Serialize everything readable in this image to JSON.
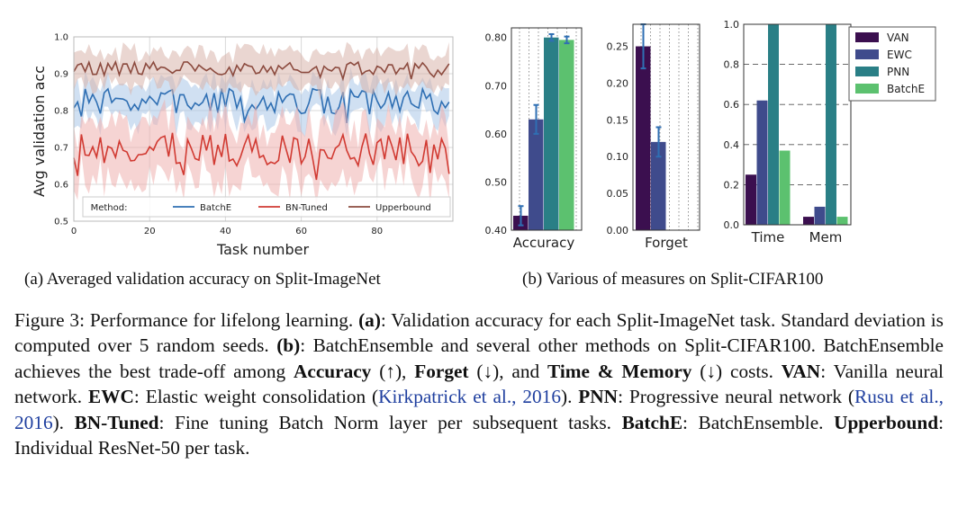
{
  "chart_data": [
    {
      "type": "line",
      "title": "Averaged validation accuracy on Split-ImageNet",
      "xlabel": "Task number",
      "ylabel": "Avg validation acc",
      "xlim": [
        0,
        100
      ],
      "ylim": [
        0.5,
        1.0
      ],
      "xticks": [
        "0",
        "20",
        "40",
        "60",
        "80"
      ],
      "yticks": [
        "0.5",
        "0.6",
        "0.7",
        "0.8",
        "0.9",
        "1.0"
      ],
      "grid": true,
      "legend_title": "Method:",
      "legend_position": "bottom",
      "series": [
        {
          "name": "BatchE",
          "color": "#2f6fb3",
          "band_color": "#a9c7e8",
          "mean": 0.825,
          "spread": 0.035,
          "band": 0.05,
          "seed": 7
        },
        {
          "name": "BN-Tuned",
          "color": "#d13a32",
          "band_color": "#efb1ae",
          "mean": 0.695,
          "spread": 0.045,
          "band": 0.075,
          "seed": 13
        },
        {
          "name": "Upperbound",
          "color": "#8c4b3f",
          "band_color": "#d9b4ab",
          "mean": 0.915,
          "spread": 0.018,
          "band": 0.045,
          "seed": 29
        }
      ]
    },
    {
      "type": "bar",
      "categories": [
        "Accuracy"
      ],
      "series": [
        {
          "name": "VAN",
          "values": [
            0.43
          ],
          "err": [
            0.02
          ]
        },
        {
          "name": "EWC",
          "values": [
            0.63
          ],
          "err": [
            0.03
          ]
        },
        {
          "name": "PNN",
          "values": [
            0.8
          ],
          "err": [
            0.007
          ]
        },
        {
          "name": "BatchE",
          "values": [
            0.795
          ],
          "err": [
            0.007
          ]
        }
      ],
      "ylim": [
        0.4,
        0.82
      ],
      "yticks": [
        "0.40",
        "0.50",
        "0.60",
        "0.70",
        "0.80"
      ]
    },
    {
      "type": "bar",
      "categories": [
        "Forget"
      ],
      "series": [
        {
          "name": "VAN",
          "values": [
            0.25
          ],
          "err": [
            0.03
          ]
        },
        {
          "name": "EWC",
          "values": [
            0.12
          ],
          "err": [
            0.02
          ]
        },
        {
          "name": "PNN",
          "values": [
            0.0
          ],
          "err": [
            0
          ]
        },
        {
          "name": "BatchE",
          "values": [
            0.0
          ],
          "err": [
            0
          ]
        }
      ],
      "ylim": [
        0.0,
        0.28
      ],
      "yticks": [
        "0.00",
        "0.05",
        "0.10",
        "0.15",
        "0.20",
        "0.25"
      ]
    },
    {
      "type": "bar",
      "categories": [
        "Time",
        "Mem"
      ],
      "series": [
        {
          "name": "VAN",
          "values": [
            0.25,
            0.04
          ]
        },
        {
          "name": "EWC",
          "values": [
            0.62,
            0.09
          ]
        },
        {
          "name": "PNN",
          "values": [
            1.0,
            1.0
          ]
        },
        {
          "name": "BatchE",
          "values": [
            0.37,
            0.04
          ]
        }
      ],
      "ylim": [
        0.0,
        1.0
      ],
      "yticks": [
        "0.0",
        "0.2",
        "0.4",
        "0.6",
        "0.8",
        "1.0"
      ],
      "legend": [
        "VAN",
        "EWC",
        "PNN",
        "BatchE"
      ],
      "legend_position": "top-right"
    }
  ],
  "colors": {
    "VAN": "#3b0f4f",
    "EWC": "#3f4b8c",
    "PNN": "#2a7f86",
    "BatchE": "#5cc16f"
  },
  "subcaptions": {
    "a": "(a) Averaged validation accuracy on Split-ImageNet",
    "b": "(b) Various of measures on Split-CIFAR100"
  },
  "caption": {
    "lead": "Figure 3: Performance for lifelong learning. ",
    "a_tag": "(a)",
    "a_text": ": Validation accuracy for each Split-ImageNet task. Standard deviation is computed over 5 random seeds. ",
    "b_tag": "(b)",
    "b_text": ": BatchEnsemble and several other methods on Split-CIFAR100. BatchEnsemble achieves the best trade-off among ",
    "accuracy": "Accuracy",
    "acc_arrow": " (↑), ",
    "forget": "Forget",
    "forget_arrow": " (↓), and ",
    "timemem": "Time & Memory",
    "tm_arrow": " (↓) costs. ",
    "van": "VAN",
    "van_text": ": Vanilla neural network. ",
    "ewc": "EWC",
    "ewc_text": ": Elastic weight consolidation (",
    "ewc_cite": "Kirkpatrick et al., 2016",
    "ewc_close": "). ",
    "pnn": "PNN",
    "pnn_text": ": Progressive neural network (",
    "pnn_cite": "Rusu et al., 2016",
    "pnn_close": "). ",
    "bn": "BN-Tuned",
    "bn_text": ": Fine tuning Batch Norm layer per subsequent tasks. ",
    "batche": "BatchE",
    "batche_text": ": BatchEnsemble. ",
    "upper": "Upperbound",
    "upper_text": ": Individual ResNet-50 per task."
  }
}
